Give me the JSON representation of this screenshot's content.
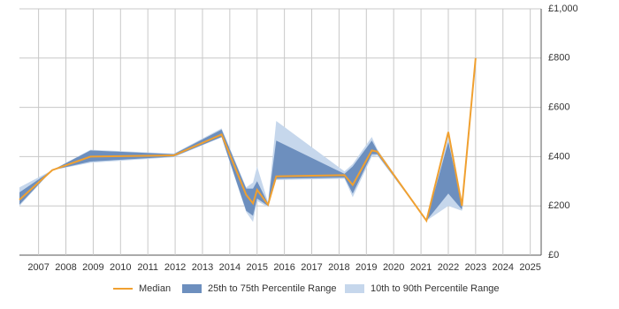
{
  "chart_data": {
    "type": "line",
    "x": [
      2006.3,
      2007.5,
      2008.9,
      2011.95,
      2013.7,
      2014.6,
      2014.85,
      2015.0,
      2015.4,
      2015.7,
      2018.2,
      2018.5,
      2019.2,
      2019.4,
      2021.2,
      2022.0,
      2022.5,
      2023.0
    ],
    "series": [
      {
        "name": "Median",
        "color": "#f0a030",
        "values": [
          225,
          345,
          400,
          405,
          490,
          245,
          210,
          265,
          205,
          320,
          325,
          285,
          425,
          420,
          140,
          500,
          200,
          800
        ]
      }
    ],
    "bands": [
      {
        "name": "10th to 90th Percentile Range",
        "color": "#c6d7ec",
        "lower": [
          200,
          345,
          375,
          398,
          478,
          175,
          135,
          220,
          195,
          305,
          310,
          235,
          400,
          405,
          140,
          200,
          180,
          800
        ],
        "upper": [
          275,
          345,
          428,
          412,
          515,
          275,
          295,
          360,
          215,
          545,
          340,
          370,
          480,
          430,
          140,
          480,
          215,
          800
        ]
      },
      {
        "name": "25th to 75th Percentile Range",
        "color": "#6d8fbe",
        "lower": [
          205,
          345,
          380,
          400,
          480,
          180,
          160,
          230,
          200,
          310,
          315,
          250,
          410,
          410,
          140,
          250,
          185,
          800
        ],
        "upper": [
          255,
          345,
          425,
          410,
          510,
          270,
          270,
          300,
          210,
          465,
          330,
          360,
          465,
          425,
          140,
          460,
          210,
          800
        ]
      }
    ],
    "xlim": [
      2006.3,
      2025.4
    ],
    "xticks": [
      2007,
      2008,
      2009,
      2010,
      2011,
      2012,
      2013,
      2014,
      2015,
      2016,
      2017,
      2018,
      2019,
      2020,
      2021,
      2022,
      2023,
      2024,
      2025
    ],
    "ylim": [
      0,
      1000
    ],
    "yticks": [
      {
        "value": 0,
        "label": "£0"
      },
      {
        "value": 200,
        "label": "£200"
      },
      {
        "value": 400,
        "label": "£400"
      },
      {
        "value": 600,
        "label": "£600"
      },
      {
        "value": 800,
        "label": "£800"
      },
      {
        "value": 1000,
        "label": "£1,000"
      }
    ],
    "grid": true
  }
}
